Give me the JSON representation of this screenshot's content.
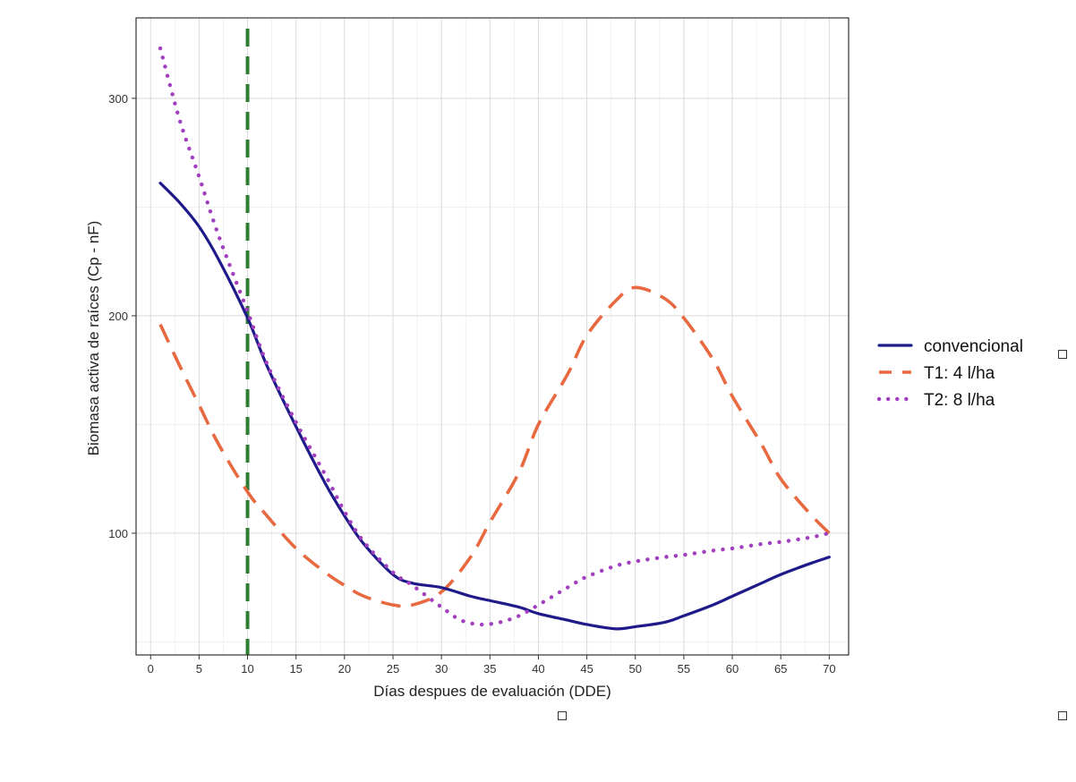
{
  "chart_data": {
    "type": "line",
    "title": "",
    "xlabel": "Días despues de evaluación (DDE)",
    "ylabel": "Biomasa activa de raíces (Cp - nF)",
    "xlim": [
      -1.5,
      72
    ],
    "ylim": [
      44,
      337
    ],
    "x_ticks": [
      0,
      5,
      10,
      15,
      20,
      25,
      30,
      35,
      40,
      45,
      50,
      55,
      60,
      65,
      70
    ],
    "y_ticks": [
      100,
      200,
      300
    ],
    "grid": true,
    "legend_position": "right",
    "reference_line": {
      "x": 10,
      "color": "#2e7d32",
      "style": "dashed"
    },
    "series": [
      {
        "name": "convencional",
        "color": "#1f1a8a",
        "style": "solid",
        "x": [
          1,
          3,
          5,
          7,
          10,
          12,
          15,
          18,
          20,
          22,
          25,
          27,
          30,
          33,
          35,
          38,
          40,
          43,
          45,
          48,
          50,
          53,
          55,
          58,
          60,
          63,
          65,
          68,
          70
        ],
        "y": [
          261,
          252,
          241,
          226,
          199,
          177,
          149,
          123,
          108,
          95,
          81,
          77,
          75,
          71,
          69,
          66,
          63,
          60,
          58,
          56,
          57,
          59,
          62,
          67,
          71,
          77,
          81,
          86,
          89
        ]
      },
      {
        "name": "T1: 4 l/ha",
        "color": "#e8683f",
        "style": "dashed",
        "x": [
          1,
          3,
          5,
          7,
          10,
          12,
          15,
          18,
          20,
          22,
          25,
          27,
          30,
          33,
          35,
          38,
          40,
          43,
          45,
          48,
          50,
          53,
          55,
          58,
          60,
          63,
          65,
          68,
          70
        ],
        "y": [
          196,
          177,
          159,
          141,
          119,
          108,
          93,
          82,
          76,
          71,
          67,
          67,
          73,
          89,
          105,
          128,
          150,
          173,
          191,
          207,
          213,
          208,
          199,
          180,
          163,
          141,
          125,
          109,
          100
        ]
      },
      {
        "name": "T2: 8 l/ha",
        "color": "#a23fbf",
        "style": "dotted",
        "x": [
          1,
          3,
          5,
          7,
          10,
          12,
          15,
          18,
          20,
          22,
          25,
          27,
          30,
          32,
          34,
          36,
          38,
          40,
          43,
          45,
          48,
          50,
          53,
          55,
          58,
          60,
          63,
          65,
          68,
          70
        ],
        "y": [
          323,
          290,
          264,
          237,
          202,
          178,
          151,
          127,
          110,
          96,
          82,
          76,
          66,
          60,
          58,
          59,
          62,
          67,
          75,
          80,
          85,
          87,
          89,
          90,
          92,
          93,
          95,
          96,
          98,
          100
        ]
      }
    ]
  }
}
